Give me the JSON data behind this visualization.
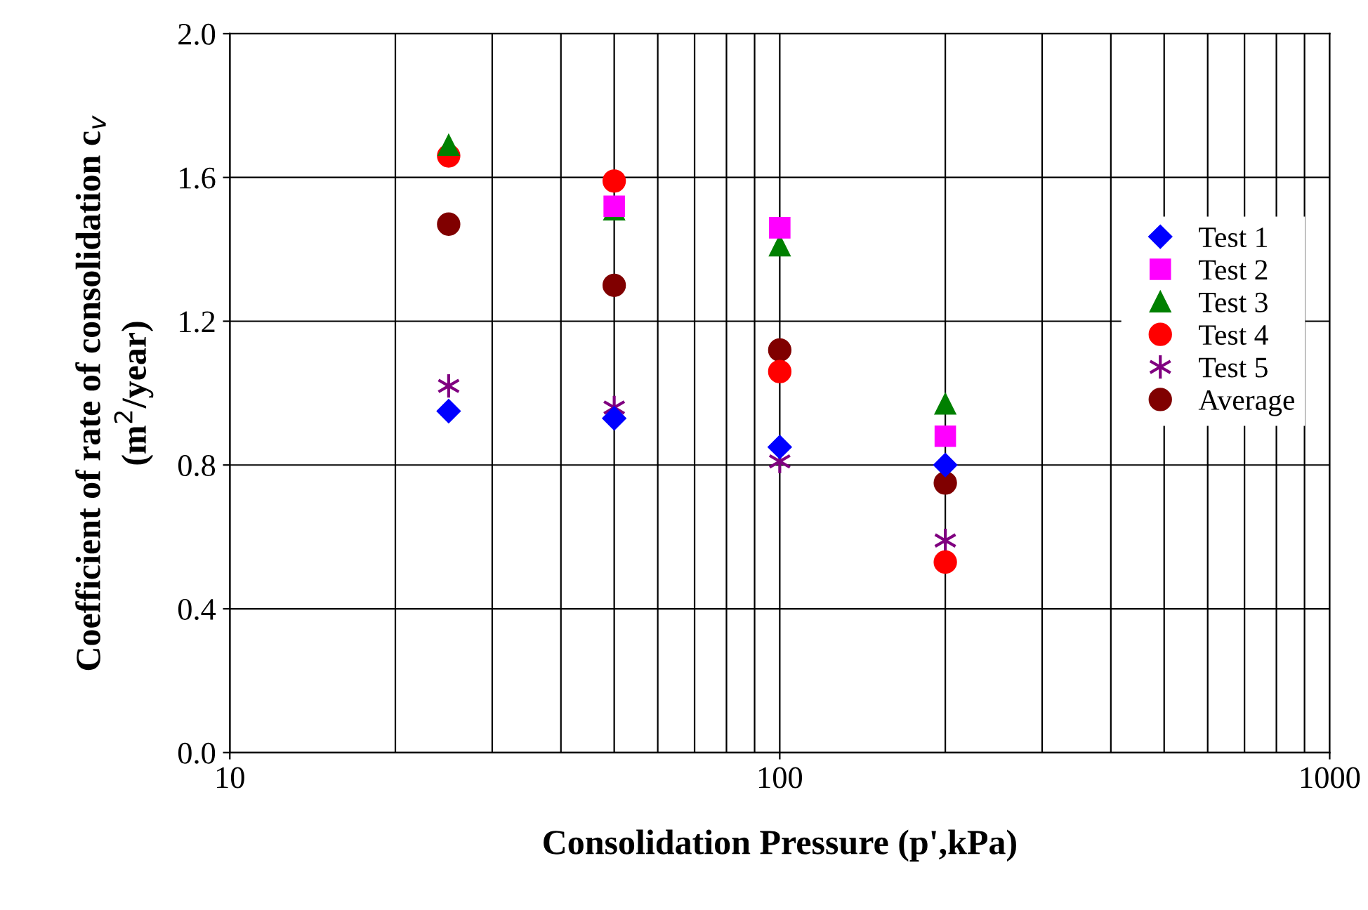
{
  "chart_data": {
    "type": "scatter",
    "xlabel": "Consolidation Pressure (p',kPa)",
    "ylabel": "Coefficient of rate of consolidation c$_{v}$\n(m$^{2}$/year)",
    "log": "x",
    "xlim": [
      10,
      1000
    ],
    "xticks": [
      10,
      100,
      1000
    ],
    "ylim": [
      0,
      2.0
    ],
    "yticks": [
      {
        "value": 0,
        "label": "0.0"
      },
      {
        "value": 0.4,
        "label": "0.4"
      },
      {
        "value": 0.8,
        "label": "0.8"
      },
      {
        "value": 1.2,
        "label": "1.2"
      },
      {
        "value": 1.6,
        "label": "1.6"
      },
      {
        "value": 2.0,
        "label": "2.0"
      }
    ],
    "grid": true,
    "legend": "right",
    "series": [
      {
        "name": "Test 1",
        "color": "#0000ff",
        "marker": "diamond",
        "x": [
          25,
          50,
          100,
          200
        ],
        "values": [
          0.95,
          0.93,
          0.85,
          0.8
        ]
      },
      {
        "name": "Test 2",
        "color": "#ff00ff",
        "marker": "square",
        "x": [
          50,
          100,
          200
        ],
        "values": [
          1.52,
          1.46,
          0.88
        ]
      },
      {
        "name": "Test 3",
        "color": "#008000",
        "marker": "triangle",
        "x": [
          25,
          50,
          100,
          200
        ],
        "values": [
          1.69,
          1.51,
          1.41,
          0.97
        ]
      },
      {
        "name": "Test 4",
        "color": "#ff0000",
        "marker": "circle",
        "x": [
          25,
          50,
          100,
          200
        ],
        "values": [
          1.66,
          1.59,
          1.06,
          0.53
        ]
      },
      {
        "name": "Test 5",
        "color": "#800080",
        "marker": "cross",
        "x": [
          25,
          50,
          100,
          200
        ],
        "values": [
          1.02,
          0.96,
          0.81,
          0.59
        ]
      },
      {
        "name": "Average",
        "color": "#800000",
        "marker": "circle",
        "x": [
          25,
          50,
          100,
          200
        ],
        "values": [
          1.47,
          1.3,
          1.12,
          0.75
        ]
      }
    ]
  }
}
